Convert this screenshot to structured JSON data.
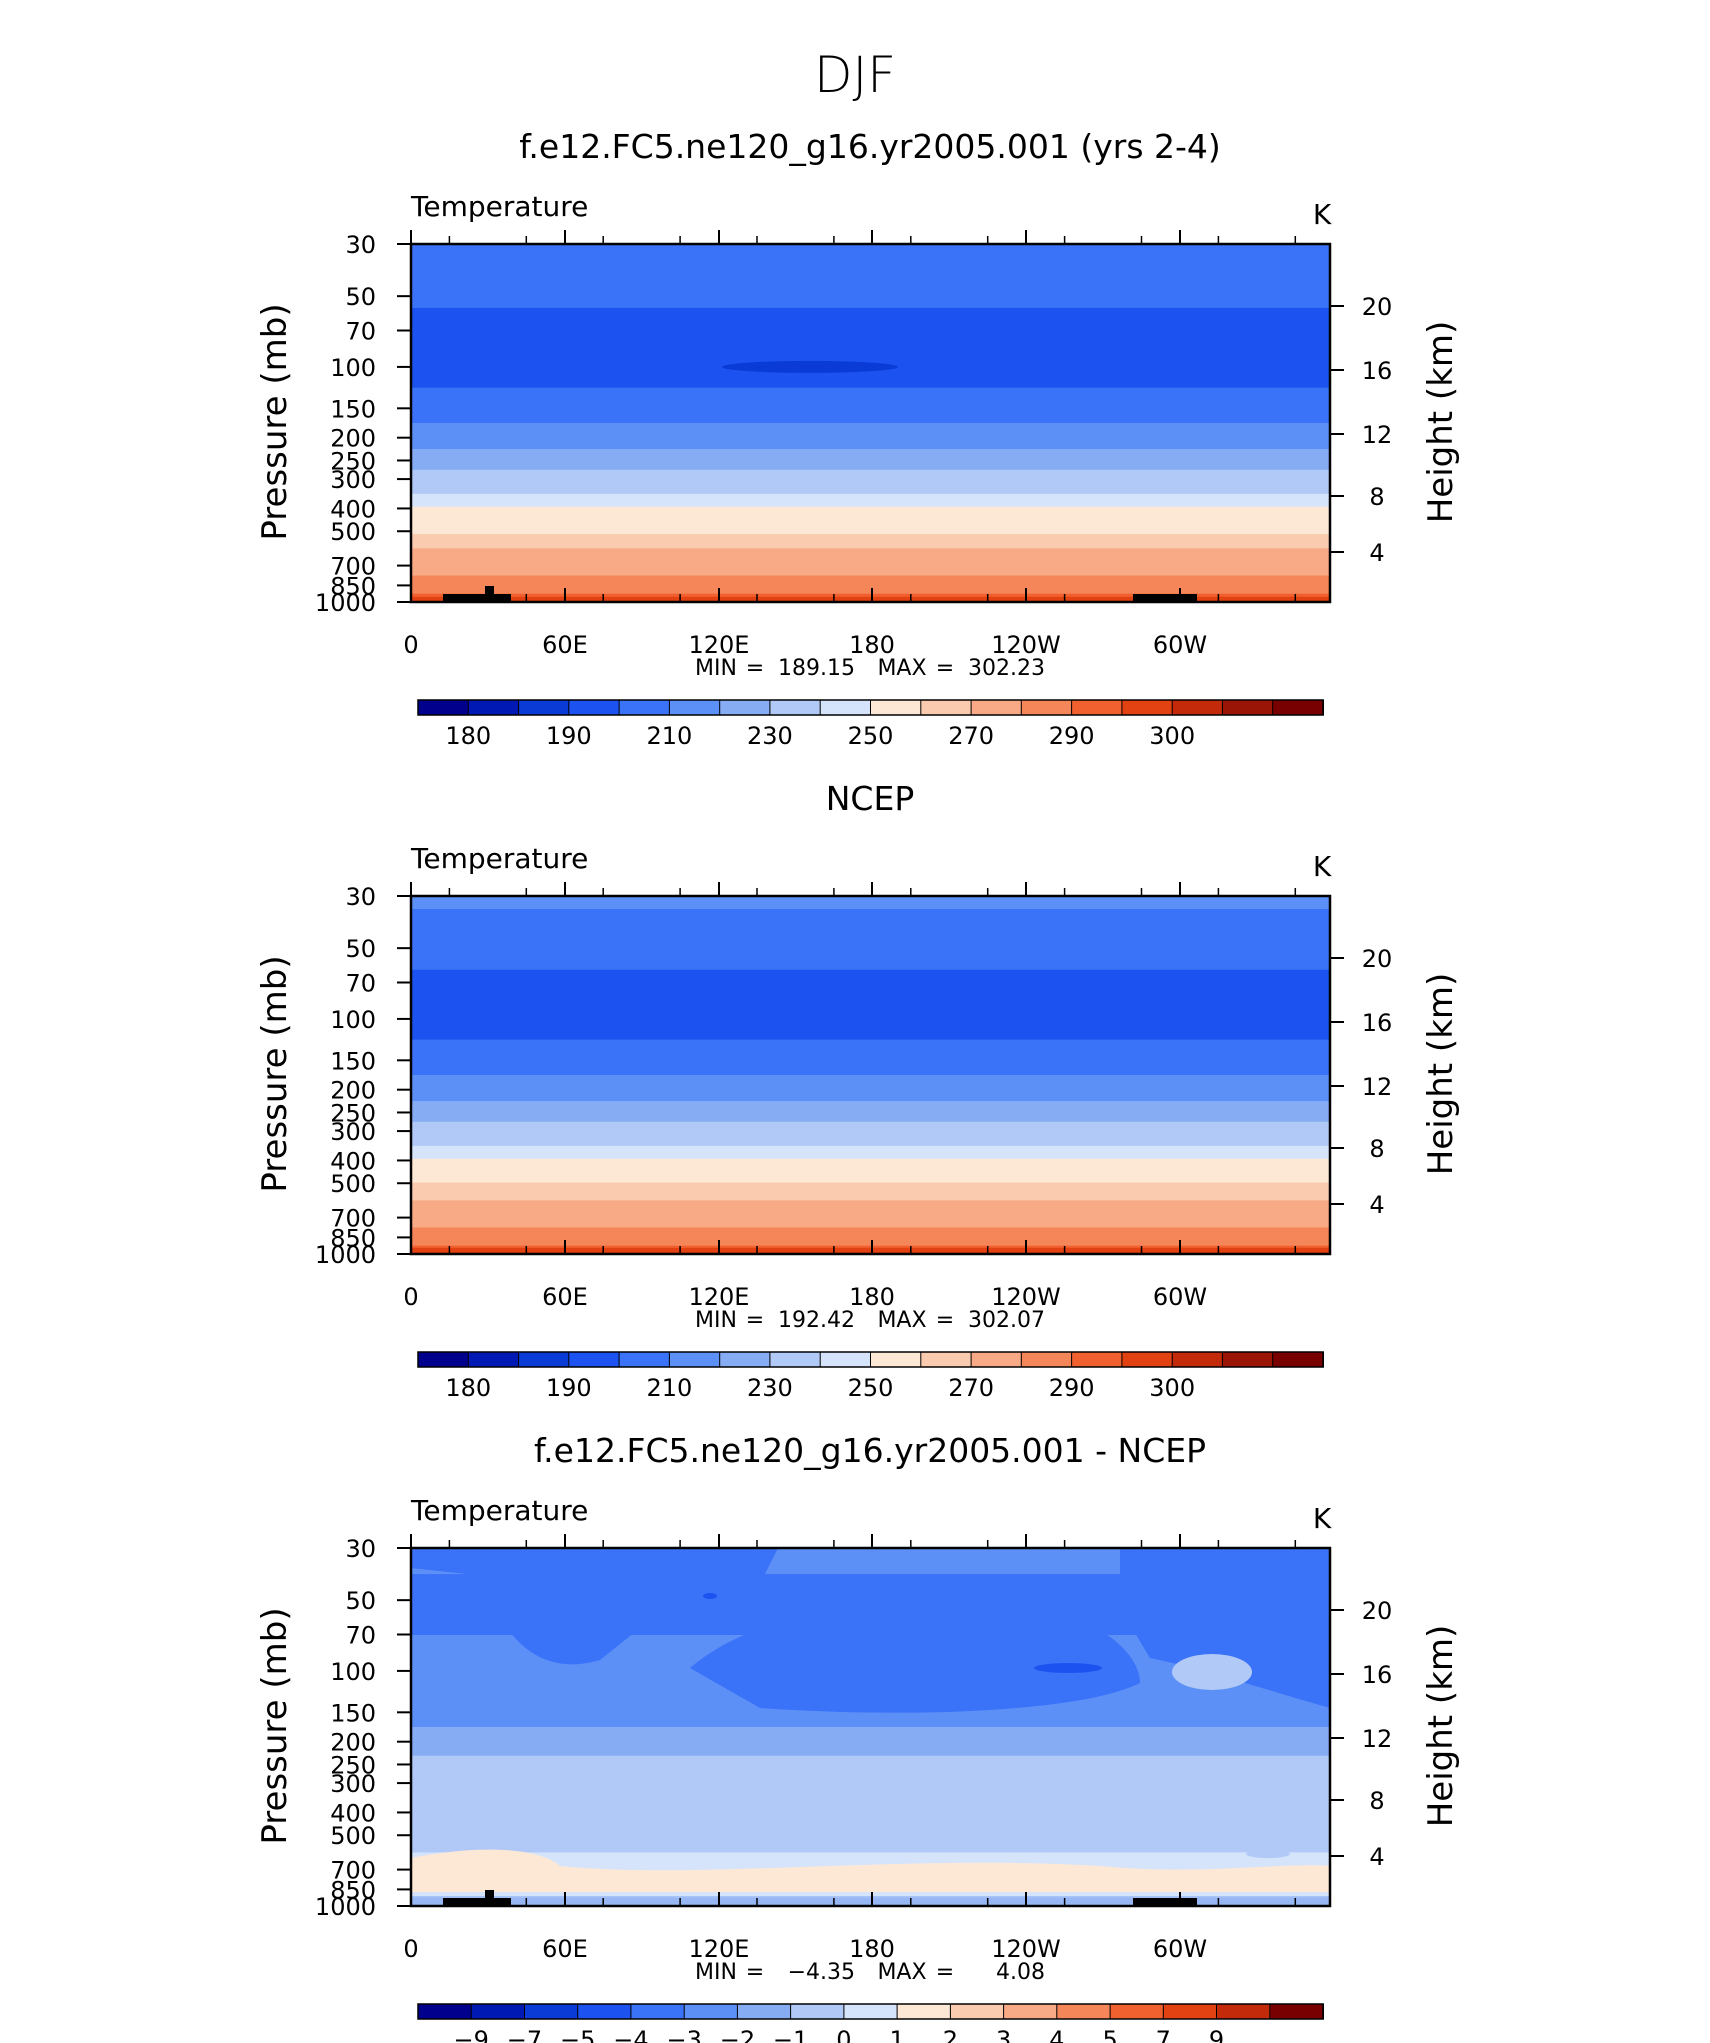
{
  "page": {
    "title": "DJF"
  },
  "colors": {
    "temp_levels": [
      "#00008c",
      "#0018b4",
      "#0b3bd6",
      "#1c53f0",
      "#3a72f8",
      "#5c90f7",
      "#86acf4",
      "#b1c9f6",
      "#d6e4fb",
      "#fde8d6",
      "#fbcbaf",
      "#f8aa86",
      "#f58659",
      "#f1612f",
      "#e24112",
      "#c22a0a",
      "#9a1506",
      "#790000"
    ],
    "diff_levels": [
      "#00008c",
      "#0018b4",
      "#0b3bd6",
      "#1c53f0",
      "#3a72f8",
      "#5c90f7",
      "#86acf4",
      "#b1c9f6",
      "#d6e4fb",
      "#fde8d6",
      "#fbcbaf",
      "#f8aa86",
      "#f58659",
      "#f1612f",
      "#e24112",
      "#c22a0a",
      "#790000"
    ],
    "topography": "#000000"
  },
  "chart_data": [
    {
      "type": "heatmap",
      "title": "f.e12.FC5.ne120_g16.yr2005.001 (yrs 2-4)",
      "left_label": "Temperature",
      "right_label": "K",
      "ylabel": "Pressure (mb)",
      "ylabel_right": "Height (km)",
      "x_tick_labels": [
        "0",
        "60E",
        "120E",
        "180",
        "120W",
        "60W"
      ],
      "y_tick_labels": [
        "30",
        "50",
        "70",
        "100",
        "150",
        "200",
        "250",
        "300",
        "400",
        "500",
        "700",
        "850",
        "1000"
      ],
      "height_tick_labels": [
        "20",
        "16",
        "12",
        "8",
        "4"
      ],
      "stats": {
        "min_label": "MIN",
        "min": "189.15",
        "max_label": "MAX",
        "max": "302.23"
      },
      "colorbar_labels": [
        "180",
        "190",
        "210",
        "230",
        "250",
        "270",
        "290",
        "300"
      ],
      "levels_by_pressure": [
        {
          "p": 30,
          "v": 208
        },
        {
          "p": 50,
          "v": 201
        },
        {
          "p": 70,
          "v": 197
        },
        {
          "p": 100,
          "v": 196
        },
        {
          "p": 150,
          "v": 204
        },
        {
          "p": 200,
          "v": 215
        },
        {
          "p": 250,
          "v": 225
        },
        {
          "p": 300,
          "v": 235
        },
        {
          "p": 400,
          "v": 250
        },
        {
          "p": 500,
          "v": 260
        },
        {
          "p": 700,
          "v": 276
        },
        {
          "p": 850,
          "v": 287
        },
        {
          "p": 1000,
          "v": 296
        }
      ]
    },
    {
      "type": "heatmap",
      "title": "NCEP",
      "left_label": "Temperature",
      "right_label": "K",
      "ylabel": "Pressure (mb)",
      "ylabel_right": "Height (km)",
      "x_tick_labels": [
        "0",
        "60E",
        "120E",
        "180",
        "120W",
        "60W"
      ],
      "y_tick_labels": [
        "30",
        "50",
        "70",
        "100",
        "150",
        "200",
        "250",
        "300",
        "400",
        "500",
        "700",
        "850",
        "1000"
      ],
      "height_tick_labels": [
        "20",
        "16",
        "12",
        "8",
        "4"
      ],
      "stats": {
        "min_label": "MIN",
        "min": "192.42",
        "max_label": "MAX",
        "max": "302.07"
      },
      "colorbar_labels": [
        "180",
        "190",
        "210",
        "230",
        "250",
        "270",
        "290",
        "300"
      ],
      "levels_by_pressure": [
        {
          "p": 30,
          "v": 210
        },
        {
          "p": 50,
          "v": 203
        },
        {
          "p": 70,
          "v": 199
        },
        {
          "p": 100,
          "v": 197
        },
        {
          "p": 150,
          "v": 205
        },
        {
          "p": 200,
          "v": 216
        },
        {
          "p": 250,
          "v": 226
        },
        {
          "p": 300,
          "v": 236
        },
        {
          "p": 400,
          "v": 250
        },
        {
          "p": 500,
          "v": 261
        },
        {
          "p": 700,
          "v": 276
        },
        {
          "p": 850,
          "v": 286
        },
        {
          "p": 1000,
          "v": 297
        }
      ]
    },
    {
      "type": "heatmap",
      "title": "f.e12.FC5.ne120_g16.yr2005.001 - NCEP",
      "left_label": "Temperature",
      "right_label": "K",
      "ylabel": "Pressure (mb)",
      "ylabel_right": "Height (km)",
      "x_tick_labels": [
        "0",
        "60E",
        "120E",
        "180",
        "120W",
        "60W"
      ],
      "y_tick_labels": [
        "30",
        "50",
        "70",
        "100",
        "150",
        "200",
        "250",
        "300",
        "400",
        "500",
        "700",
        "850",
        "1000"
      ],
      "height_tick_labels": [
        "20",
        "16",
        "12",
        "8",
        "4"
      ],
      "stats": {
        "min_label": "MIN",
        "min": "−4.35",
        "max_label": "MAX",
        "max": "4.08"
      },
      "colorbar_labels": [
        "−9",
        "−7",
        "−5",
        "−4",
        "−3",
        "−2",
        "−1",
        "0",
        "1",
        "2",
        "3",
        "4",
        "5",
        "7",
        "9"
      ],
      "levels_by_pressure": [
        {
          "p": 30,
          "v": -2.5
        },
        {
          "p": 50,
          "v": -3.2
        },
        {
          "p": 70,
          "v": -3.0
        },
        {
          "p": 100,
          "v": -2.6
        },
        {
          "p": 150,
          "v": -2.2
        },
        {
          "p": 200,
          "v": -1.6
        },
        {
          "p": 250,
          "v": -0.8
        },
        {
          "p": 300,
          "v": -0.5
        },
        {
          "p": 400,
          "v": -0.5
        },
        {
          "p": 500,
          "v": -0.5
        },
        {
          "p": 700,
          "v": 0.4
        },
        {
          "p": 850,
          "v": 0.6
        },
        {
          "p": 1000,
          "v": -0.4
        }
      ]
    }
  ]
}
